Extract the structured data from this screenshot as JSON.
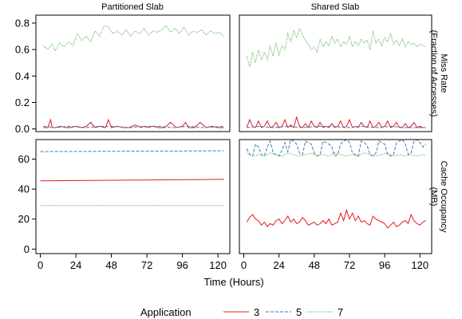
{
  "chart_data": {
    "type": "line",
    "column_strips": [
      "Partitioned Slab",
      "Shared Slab"
    ],
    "row_strips": [
      "Miss Rate\n(Fraction of Accesses)",
      "Cache Occupancy\n(MB)"
    ],
    "xlabel": "Time (Hours)",
    "x_ticks": [
      0,
      24,
      48,
      72,
      96,
      120
    ],
    "xlim": [
      -3,
      128
    ],
    "rows": [
      {
        "ylim": [
          -0.02,
          0.86
        ],
        "y_ticks": [
          0.0,
          0.2,
          0.4,
          0.6,
          0.8
        ],
        "y_tick_labels": [
          "0.0",
          "0.2",
          "0.4",
          "0.6",
          "0.8"
        ]
      },
      {
        "ylim": [
          -3,
          73
        ],
        "y_ticks": [
          0,
          20,
          40,
          60
        ],
        "y_tick_labels": [
          "0",
          "20",
          "40",
          "60"
        ]
      }
    ],
    "legend": {
      "title": "Application",
      "entries": [
        {
          "label": "3",
          "color": "#e41a1c",
          "dash": "solid"
        },
        {
          "label": "5",
          "color": "#377eb8",
          "dash": "dashed"
        },
        {
          "label": "7",
          "color": "#4daf4a",
          "dash": "dotted"
        }
      ],
      "placement": "bottom"
    },
    "panels": [
      {
        "row": 0,
        "col": 0,
        "series": [
          {
            "name": "7",
            "x": [
              2,
              5,
              8,
              10,
              13,
              16,
              19,
              22,
              25,
              28,
              31,
              34,
              37,
              40,
              43,
              46,
              49,
              52,
              55,
              58,
              61,
              64,
              67,
              70,
              73,
              76,
              79,
              82,
              85,
              88,
              91,
              94,
              97,
              100,
              103,
              106,
              109,
              112,
              115,
              118,
              121,
              124
            ],
            "y": [
              0.63,
              0.6,
              0.64,
              0.59,
              0.65,
              0.62,
              0.66,
              0.63,
              0.72,
              0.67,
              0.7,
              0.66,
              0.74,
              0.7,
              0.78,
              0.77,
              0.72,
              0.74,
              0.71,
              0.75,
              0.7,
              0.74,
              0.72,
              0.76,
              0.71,
              0.74,
              0.73,
              0.75,
              0.78,
              0.73,
              0.76,
              0.72,
              0.77,
              0.71,
              0.74,
              0.73,
              0.75,
              0.71,
              0.74,
              0.72,
              0.73,
              0.7
            ]
          },
          {
            "name": "3",
            "x": [
              2,
              5,
              7,
              8,
              10,
              14,
              17,
              20,
              24,
              28,
              31,
              34,
              37,
              40,
              44,
              46,
              48,
              52,
              56,
              60,
              64,
              68,
              70,
              72,
              76,
              80,
              84,
              88,
              92,
              96,
              98,
              100,
              104,
              108,
              112,
              116,
              120,
              124
            ],
            "y": [
              0.01,
              0.01,
              0.07,
              0.01,
              0.01,
              0.02,
              0.01,
              0.01,
              0.02,
              0.01,
              0.02,
              0.05,
              0.01,
              0.02,
              0.01,
              0.07,
              0.01,
              0.02,
              0.01,
              0.01,
              0.03,
              0.01,
              0.02,
              0.01,
              0.02,
              0.01,
              0.01,
              0.05,
              0.01,
              0.02,
              0.05,
              0.01,
              0.01,
              0.05,
              0.01,
              0.02,
              0.01,
              0.01
            ]
          },
          {
            "name": "5",
            "x": [
              2,
              10,
              20,
              30,
              40,
              50,
              60,
              70,
              80,
              90,
              100,
              110,
              124
            ],
            "y": [
              0.02,
              0.01,
              0.02,
              0.01,
              0.02,
              0.02,
              0.01,
              0.02,
              0.02,
              0.01,
              0.02,
              0.01,
              0.02
            ]
          }
        ]
      },
      {
        "row": 0,
        "col": 1,
        "series": [
          {
            "name": "7",
            "x": [
              2,
              4,
              6,
              8,
              10,
              12,
              14,
              16,
              18,
              20,
              22,
              24,
              26,
              28,
              30,
              32,
              34,
              36,
              38,
              40,
              42,
              44,
              46,
              48,
              50,
              52,
              54,
              56,
              58,
              60,
              62,
              64,
              66,
              68,
              70,
              72,
              74,
              76,
              78,
              80,
              82,
              84,
              86,
              88,
              90,
              92,
              94,
              96,
              98,
              100,
              102,
              104,
              106,
              108,
              110,
              112,
              114,
              116,
              118,
              120,
              122,
              124
            ],
            "y": [
              0.55,
              0.47,
              0.58,
              0.5,
              0.6,
              0.52,
              0.58,
              0.53,
              0.62,
              0.55,
              0.65,
              0.56,
              0.63,
              0.6,
              0.72,
              0.66,
              0.74,
              0.69,
              0.76,
              0.71,
              0.67,
              0.64,
              0.6,
              0.62,
              0.58,
              0.68,
              0.62,
              0.66,
              0.63,
              0.7,
              0.65,
              0.68,
              0.62,
              0.66,
              0.64,
              0.7,
              0.62,
              0.66,
              0.63,
              0.68,
              0.65,
              0.67,
              0.6,
              0.74,
              0.65,
              0.68,
              0.63,
              0.69,
              0.66,
              0.72,
              0.64,
              0.67,
              0.63,
              0.68,
              0.62,
              0.66,
              0.64,
              0.65,
              0.62,
              0.64,
              0.63,
              0.62
            ]
          },
          {
            "name": "3",
            "x": [
              2,
              4,
              6,
              8,
              10,
              12,
              14,
              16,
              18,
              20,
              22,
              24,
              26,
              28,
              30,
              32,
              34,
              36,
              38,
              40,
              42,
              44,
              46,
              48,
              50,
              52,
              54,
              56,
              58,
              60,
              62,
              64,
              66,
              68,
              70,
              72,
              74,
              76,
              78,
              80,
              82,
              84,
              86,
              88,
              90,
              92,
              94,
              96,
              98,
              100,
              102,
              104,
              106,
              108,
              110,
              112,
              114,
              116,
              118,
              120,
              122,
              124
            ],
            "y": [
              0.01,
              0.07,
              0.02,
              0.01,
              0.06,
              0.01,
              0.02,
              0.06,
              0.01,
              0.02,
              0.05,
              0.01,
              0.02,
              0.07,
              0.01,
              0.03,
              0.01,
              0.09,
              0.02,
              0.01,
              0.04,
              0.01,
              0.06,
              0.02,
              0.01,
              0.05,
              0.01,
              0.02,
              0.01,
              0.04,
              0.01,
              0.02,
              0.06,
              0.01,
              0.02,
              0.07,
              0.01,
              0.02,
              0.01,
              0.05,
              0.02,
              0.01,
              0.06,
              0.01,
              0.02,
              0.05,
              0.01,
              0.02,
              0.06,
              0.01,
              0.02,
              0.05,
              0.01,
              0.01,
              0.04,
              0.01,
              0.02,
              0.05,
              0.01,
              0.02,
              0.01,
              0.01
            ]
          },
          {
            "name": "5",
            "x": [
              2,
              10,
              20,
              30,
              40,
              50,
              60,
              70,
              80,
              90,
              100,
              110,
              124
            ],
            "y": [
              0.01,
              0.02,
              0.01,
              0.02,
              0.01,
              0.02,
              0.02,
              0.01,
              0.02,
              0.01,
              0.02,
              0.01,
              0.01
            ]
          }
        ]
      },
      {
        "row": 1,
        "col": 0,
        "series": [
          {
            "name": "5",
            "x": [
              0,
              124
            ],
            "y": [
              65,
              65.5
            ]
          },
          {
            "name": "3",
            "x": [
              0,
              124
            ],
            "y": [
              45.5,
              46.5
            ]
          },
          {
            "name": "7",
            "x": [
              0,
              124
            ],
            "y": [
              29,
              29
            ]
          }
        ]
      },
      {
        "row": 1,
        "col": 1,
        "series": [
          {
            "name": "5",
            "x": [
              2,
              4,
              6,
              8,
              10,
              12,
              14,
              16,
              18,
              20,
              22,
              24,
              26,
              28,
              30,
              32,
              34,
              36,
              38,
              40,
              42,
              44,
              46,
              48,
              50,
              52,
              54,
              56,
              58,
              60,
              62,
              64,
              66,
              68,
              70,
              72,
              74,
              76,
              78,
              80,
              82,
              84,
              86,
              88,
              90,
              92,
              94,
              96,
              98,
              100,
              102,
              104,
              106,
              108,
              110,
              112,
              114,
              116,
              118,
              120,
              122,
              124
            ],
            "y": [
              67,
              63,
              62,
              70,
              68,
              63,
              62,
              68,
              72,
              64,
              63,
              62,
              66,
              71,
              65,
              73,
              72,
              70,
              64,
              63,
              72,
              71,
              70,
              64,
              62,
              63,
              72,
              71,
              70,
              68,
              62,
              63,
              70,
              72,
              73,
              71,
              64,
              63,
              62,
              72,
              71,
              69,
              63,
              62,
              64,
              72,
              71,
              70,
              63,
              62,
              63,
              71,
              72,
              73,
              70,
              63,
              64,
              72,
              73,
              71,
              68,
              70
            ]
          },
          {
            "name": "7",
            "x": [
              2,
              6,
              10,
              14,
              18,
              22,
              26,
              30,
              34,
              38,
              42,
              46,
              50,
              54,
              58,
              62,
              66,
              70,
              74,
              78,
              82,
              86,
              90,
              94,
              98,
              102,
              106,
              110,
              114,
              118,
              122,
              124
            ],
            "y": [
              64,
              62,
              63,
              62,
              64,
              63,
              62,
              64,
              63,
              62,
              63,
              64,
              62,
              63,
              62,
              64,
              63,
              62,
              63,
              62,
              64,
              63,
              62,
              63,
              64,
              62,
              63,
              62,
              63,
              62,
              63,
              62
            ]
          },
          {
            "name": "3",
            "x": [
              2,
              4,
              6,
              8,
              10,
              12,
              14,
              16,
              18,
              20,
              22,
              24,
              26,
              28,
              30,
              32,
              34,
              36,
              38,
              40,
              42,
              44,
              46,
              48,
              50,
              52,
              54,
              56,
              58,
              60,
              62,
              64,
              66,
              68,
              70,
              72,
              74,
              76,
              78,
              80,
              82,
              84,
              86,
              88,
              90,
              92,
              94,
              96,
              98,
              100,
              102,
              104,
              106,
              108,
              110,
              112,
              114,
              116,
              118,
              120,
              122,
              124
            ],
            "y": [
              18,
              21,
              23,
              20,
              19,
              16,
              18,
              15,
              17,
              16,
              19,
              20,
              17,
              19,
              22,
              18,
              20,
              17,
              18,
              21,
              19,
              16,
              17,
              18,
              16,
              17,
              19,
              17,
              20,
              16,
              17,
              18,
              24,
              19,
              26,
              20,
              24,
              19,
              22,
              18,
              19,
              17,
              16,
              22,
              20,
              19,
              18,
              17,
              14,
              16,
              18,
              15,
              16,
              18,
              19,
              17,
              23,
              19,
              17,
              16,
              18,
              19
            ]
          }
        ]
      }
    ]
  }
}
